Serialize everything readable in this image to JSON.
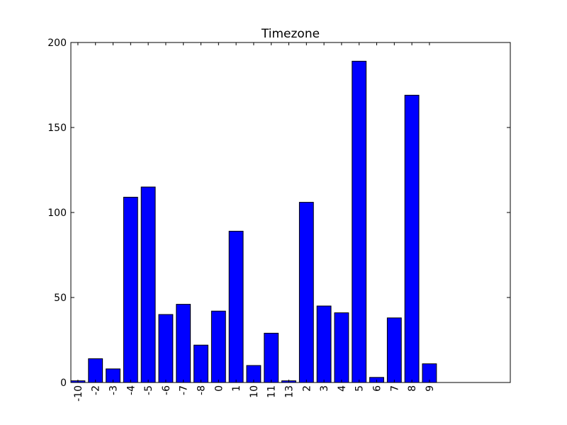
{
  "chart_data": {
    "type": "bar",
    "title": "Timezone",
    "xlabel": "",
    "ylabel": "",
    "categories": [
      "-10",
      "-2",
      "-3",
      "-4",
      "-5",
      "-6",
      "-7",
      "-8",
      "0",
      "1",
      "10",
      "11",
      "13",
      "2",
      "3",
      "4",
      "5",
      "6",
      "7",
      "8",
      "9"
    ],
    "values": [
      1,
      14,
      8,
      109,
      115,
      40,
      46,
      22,
      42,
      89,
      10,
      29,
      1,
      106,
      45,
      41,
      189,
      3,
      38,
      169,
      11
    ],
    "ylim": [
      0,
      200
    ],
    "yticks": [
      0,
      50,
      100,
      150,
      200
    ],
    "xlim": [
      0,
      25
    ],
    "bar_color": "#0000ff",
    "edge_color": "#000000",
    "grid": false
  }
}
